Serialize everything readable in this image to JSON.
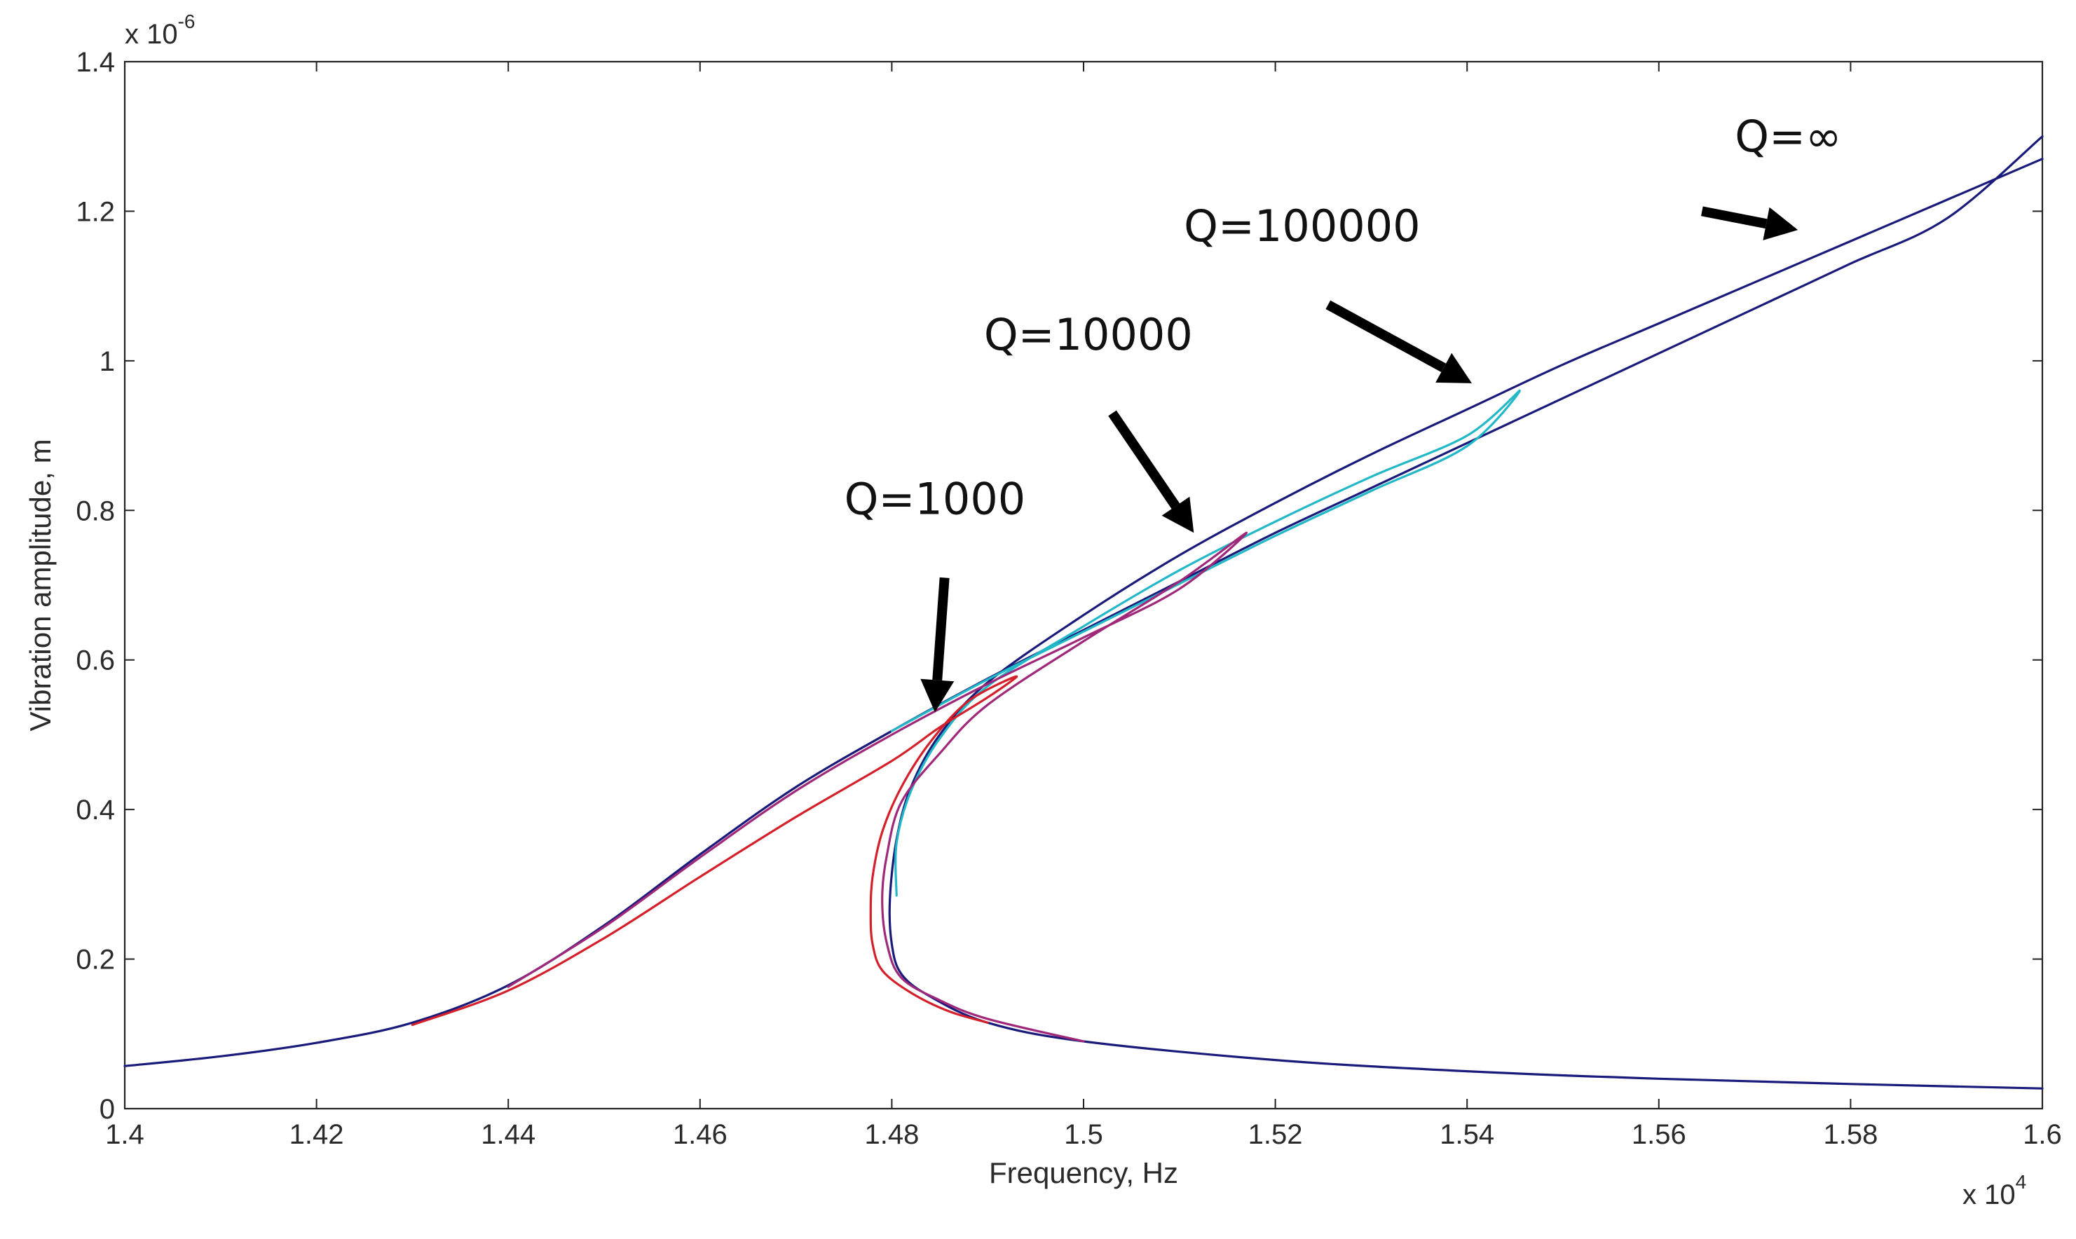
{
  "chart_data": {
    "type": "line",
    "title": "",
    "xlabel": "Frequency, Hz",
    "ylabel": "Vibration amplitude, m",
    "x_exponent": "x 10",
    "x_exponent_power": "4",
    "y_exponent": "x 10",
    "y_exponent_power": "-6",
    "xlim": [
      1.4,
      1.6
    ],
    "ylim": [
      0,
      1.4
    ],
    "grid": false,
    "x_ticks": [
      "1.4",
      "1.42",
      "1.44",
      "1.46",
      "1.48",
      "1.5",
      "1.52",
      "1.54",
      "1.56",
      "1.58",
      "1.6"
    ],
    "y_ticks": [
      "0",
      "0.2",
      "0.4",
      "0.6",
      "0.8",
      "1",
      "1.2",
      "1.4"
    ],
    "x_tick_values": [
      1.4,
      1.42,
      1.44,
      1.46,
      1.48,
      1.5,
      1.52,
      1.54,
      1.56,
      1.58,
      1.6
    ],
    "y_tick_values": [
      0,
      0.2,
      0.4,
      0.6,
      0.8,
      1.0,
      1.2,
      1.4
    ],
    "series": [
      {
        "name": "Q=∞",
        "color": "#1a1a7a",
        "x": [
          1.4,
          1.41,
          1.42,
          1.43,
          1.44,
          1.45,
          1.46,
          1.47,
          1.48,
          1.49,
          1.5,
          1.51,
          1.52,
          1.53,
          1.54,
          1.55,
          1.56,
          1.57,
          1.58,
          1.59,
          1.6,
          null,
          1.6,
          1.59,
          1.58,
          1.57,
          1.56,
          1.55,
          1.54,
          1.53,
          1.52,
          1.51,
          1.5,
          1.49,
          1.485,
          1.482,
          1.4805,
          1.4798,
          1.48,
          1.481,
          1.484,
          1.49,
          1.5,
          1.52,
          1.54,
          1.56,
          1.58,
          1.6
        ],
        "y": [
          0.057,
          0.07,
          0.088,
          0.115,
          0.165,
          0.245,
          0.34,
          0.43,
          0.505,
          0.575,
          0.64,
          0.705,
          0.77,
          0.83,
          0.89,
          0.95,
          1.01,
          1.07,
          1.13,
          1.19,
          1.3,
          null,
          1.27,
          1.215,
          1.16,
          1.105,
          1.05,
          0.995,
          0.935,
          0.875,
          0.81,
          0.74,
          0.66,
          0.57,
          0.5,
          0.43,
          0.36,
          0.28,
          0.22,
          0.18,
          0.15,
          0.115,
          0.09,
          0.065,
          0.05,
          0.04,
          0.033,
          0.027
        ]
      },
      {
        "name": "Q=100000",
        "color": "#22b8c8",
        "x": [
          1.48,
          1.49,
          1.5,
          1.51,
          1.52,
          1.53,
          1.54,
          1.5455,
          1.54,
          1.53,
          1.52,
          1.51,
          1.5,
          1.49,
          1.485,
          1.482,
          1.4805,
          1.4805
        ],
        "y": [
          0.505,
          0.574,
          0.638,
          0.702,
          0.766,
          0.826,
          0.886,
          0.96,
          0.9,
          0.845,
          0.785,
          0.72,
          0.645,
          0.565,
          0.495,
          0.425,
          0.355,
          0.285
        ]
      },
      {
        "name": "Q=10000",
        "color": "#a0287a",
        "x": [
          1.44,
          1.45,
          1.46,
          1.47,
          1.48,
          1.49,
          1.5,
          1.51,
          1.517,
          1.51,
          1.5,
          1.49,
          1.485,
          1.481,
          1.4795,
          1.479,
          1.4795,
          1.481,
          1.485,
          1.49,
          1.5
        ],
        "y": [
          0.163,
          0.243,
          0.336,
          0.425,
          0.5,
          0.568,
          0.63,
          0.695,
          0.77,
          0.705,
          0.625,
          0.54,
          0.475,
          0.41,
          0.34,
          0.28,
          0.22,
          0.175,
          0.145,
          0.12,
          0.09
        ]
      },
      {
        "name": "Q=1000",
        "color": "#d4202a",
        "x": [
          1.43,
          1.44,
          1.45,
          1.46,
          1.47,
          1.48,
          1.485,
          1.49,
          1.493,
          1.488,
          1.484,
          1.481,
          1.479,
          1.478,
          1.4778,
          1.478,
          1.479,
          1.482,
          1.486,
          1.49
        ],
        "y": [
          0.112,
          0.158,
          0.228,
          0.31,
          0.39,
          0.465,
          0.51,
          0.55,
          0.578,
          0.545,
          0.49,
          0.43,
          0.37,
          0.31,
          0.26,
          0.22,
          0.185,
          0.155,
          0.13,
          0.115
        ]
      }
    ],
    "annotations": [
      {
        "text": "Q=∞",
        "label_x": 1.5735,
        "label_y": 1.28,
        "from_x": 1.5645,
        "from_y": 1.2,
        "to_x": 1.5745,
        "to_y": 1.175
      },
      {
        "text": "Q=100000",
        "label_x": 1.5228,
        "label_y": 1.16,
        "from_x": 1.5255,
        "from_y": 1.075,
        "to_x": 1.5405,
        "to_y": 0.97
      },
      {
        "text": "Q=10000",
        "label_x": 1.5005,
        "label_y": 1.015,
        "from_x": 1.503,
        "from_y": 0.93,
        "to_x": 1.5115,
        "to_y": 0.77
      },
      {
        "text": "Q=1000",
        "label_x": 1.4845,
        "label_y": 0.795,
        "from_x": 1.4855,
        "from_y": 0.71,
        "to_x": 1.4845,
        "to_y": 0.53
      }
    ]
  }
}
